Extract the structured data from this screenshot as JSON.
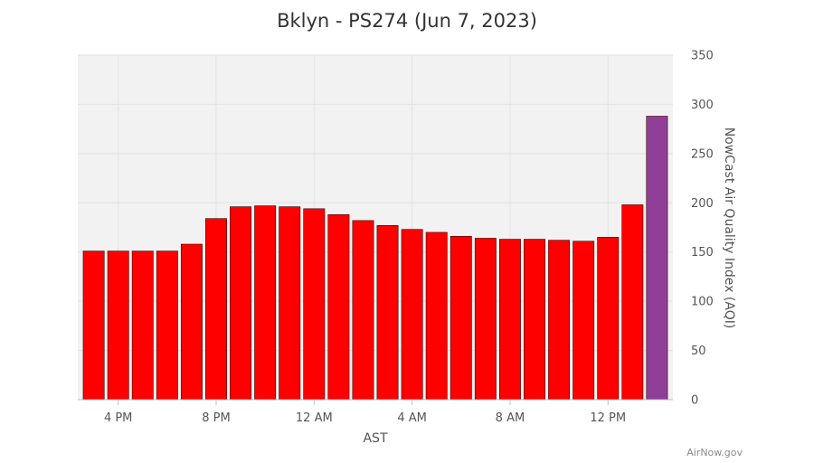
{
  "chart_data": {
    "type": "bar",
    "title": "Bklyn - PS274 (Jun 7, 2023)",
    "xlabel": "AST",
    "ylabel": "NowCast Air Quality Index (AQI)",
    "ylim": [
      0,
      350
    ],
    "y_ticks": [
      0,
      50,
      100,
      150,
      200,
      250,
      300,
      350
    ],
    "x_tick_labels": [
      "4 PM",
      "8 PM",
      "12 AM",
      "4 AM",
      "8 AM",
      "12 PM"
    ],
    "x_tick_bar_index": [
      1,
      5,
      9,
      13,
      17,
      21
    ],
    "y_axis_position": "right",
    "grid": true,
    "values": [
      151,
      151,
      151,
      151,
      158,
      184,
      196,
      197,
      196,
      194,
      188,
      182,
      177,
      173,
      170,
      166,
      164,
      163,
      163,
      162,
      161,
      165,
      198,
      288
    ],
    "bar_colors": [
      "#ff0000",
      "#ff0000",
      "#ff0000",
      "#ff0000",
      "#ff0000",
      "#ff0000",
      "#ff0000",
      "#ff0000",
      "#ff0000",
      "#ff0000",
      "#ff0000",
      "#ff0000",
      "#ff0000",
      "#ff0000",
      "#ff0000",
      "#ff0000",
      "#ff0000",
      "#ff0000",
      "#ff0000",
      "#ff0000",
      "#ff0000",
      "#ff0000",
      "#ff0000",
      "#8f3f97"
    ],
    "plot_background": "#f2f2f2",
    "credit": "AirNow.gov"
  }
}
